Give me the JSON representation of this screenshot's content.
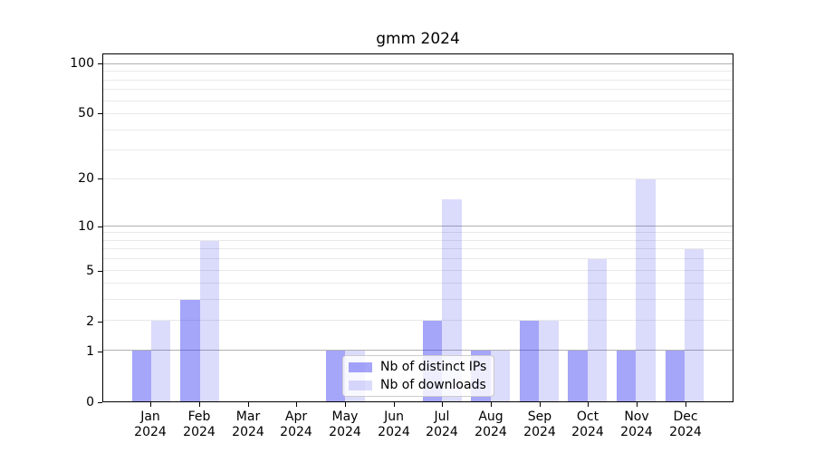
{
  "chart_data": {
    "type": "bar",
    "title": "gmm 2024",
    "categories": [
      "Jan",
      "Feb",
      "Mar",
      "Apr",
      "May",
      "Jun",
      "Jul",
      "Aug",
      "Sep",
      "Oct",
      "Nov",
      "Dec"
    ],
    "year_label": "2024",
    "series": [
      {
        "name": "Nb of distinct IPs",
        "key": "ips",
        "color": "rgba(40,40,240,0.42)",
        "color_hex": "#a9a9f2",
        "values": [
          1,
          3,
          0,
          0,
          1,
          0,
          2,
          1,
          2,
          1,
          1,
          1
        ]
      },
      {
        "name": "Nb of downloads",
        "key": "downloads",
        "color": "rgba(40,40,240,0.17)",
        "color_hex": "#dadaf9",
        "values": [
          2,
          8,
          0,
          0,
          1,
          0,
          15,
          1,
          2,
          6,
          20,
          7
        ]
      }
    ],
    "xlabel": "",
    "ylabel": "",
    "yscale": "log1p",
    "ylim": [
      0,
      114.7
    ],
    "yticks": [
      0,
      1,
      2,
      5,
      10,
      20,
      50,
      100
    ],
    "ytick_labels": [
      "0",
      "1",
      "2",
      "5",
      "10",
      "20",
      "50",
      "100"
    ],
    "major_gridlines": [
      1,
      10,
      100
    ],
    "minor_gridlines": [
      2,
      3,
      4,
      5,
      6,
      7,
      8,
      9,
      20,
      30,
      40,
      50,
      60,
      70,
      80,
      90
    ],
    "grid": "horizontal",
    "legend_position": "inside-lower-center",
    "colors": {
      "major_grid": "#b0b0b0",
      "minor_grid": "#e9e9e9",
      "spine": "#000000",
      "text": "#000000",
      "legend_border": "#cccccc",
      "legend_background": "rgba(255,255,255,0.8)"
    }
  }
}
